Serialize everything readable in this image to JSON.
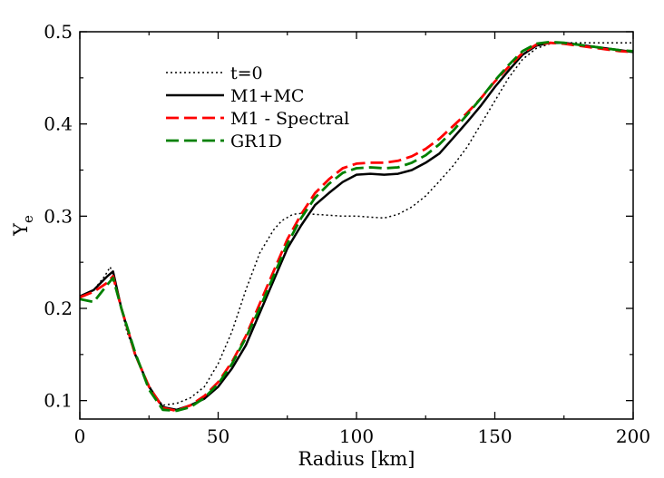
{
  "chart_data": {
    "type": "line",
    "title": "",
    "xlabel": "Radius [km]",
    "ylabel": "Y",
    "ylabel_subscript": "e",
    "xlim": [
      0,
      200
    ],
    "ylim": [
      0.08,
      0.5
    ],
    "xticks": [
      0,
      50,
      100,
      150,
      200
    ],
    "xtick_labels": [
      "0",
      "50",
      "100",
      "150",
      "200"
    ],
    "yticks": [
      0.1,
      0.2,
      0.3,
      0.4,
      0.5
    ],
    "ytick_labels": [
      "0.1",
      "0.2",
      "0.3",
      "0.4",
      "0.5"
    ],
    "grid": false,
    "legend_position": "top-left",
    "series": [
      {
        "name": "t=0",
        "color": "#000000",
        "style": "dotted",
        "x": [
          0,
          5,
          9,
          11,
          13,
          17,
          22,
          27,
          30,
          35,
          40,
          45,
          50,
          55,
          60,
          65,
          70,
          73,
          77,
          80,
          85,
          90,
          95,
          100,
          105,
          110,
          115,
          120,
          125,
          130,
          135,
          140,
          145,
          150,
          155,
          160,
          165,
          170,
          175,
          180,
          185,
          190,
          195,
          200
        ],
        "y": [
          0.21,
          0.22,
          0.235,
          0.245,
          0.225,
          0.175,
          0.135,
          0.105,
          0.095,
          0.097,
          0.103,
          0.115,
          0.14,
          0.175,
          0.22,
          0.26,
          0.285,
          0.295,
          0.302,
          0.303,
          0.302,
          0.301,
          0.3,
          0.3,
          0.299,
          0.298,
          0.302,
          0.31,
          0.322,
          0.338,
          0.355,
          0.375,
          0.4,
          0.425,
          0.45,
          0.47,
          0.482,
          0.487,
          0.488,
          0.488,
          0.488,
          0.488,
          0.488,
          0.488
        ]
      },
      {
        "name": "M1+MC",
        "color": "#000000",
        "style": "solid",
        "x": [
          0,
          5,
          10,
          12,
          15,
          20,
          25,
          30,
          35,
          40,
          45,
          50,
          55,
          60,
          65,
          70,
          75,
          80,
          85,
          90,
          95,
          100,
          105,
          110,
          115,
          120,
          125,
          130,
          135,
          140,
          145,
          150,
          155,
          160,
          165,
          170,
          175,
          180,
          185,
          190,
          195,
          200
        ],
        "y": [
          0.213,
          0.22,
          0.235,
          0.24,
          0.2,
          0.15,
          0.115,
          0.093,
          0.09,
          0.095,
          0.102,
          0.115,
          0.135,
          0.16,
          0.195,
          0.23,
          0.265,
          0.29,
          0.312,
          0.325,
          0.337,
          0.345,
          0.346,
          0.345,
          0.346,
          0.35,
          0.358,
          0.368,
          0.385,
          0.402,
          0.42,
          0.44,
          0.458,
          0.475,
          0.485,
          0.488,
          0.488,
          0.486,
          0.484,
          0.482,
          0.48,
          0.478
        ]
      },
      {
        "name": "M1 - Spectral",
        "color": "#ff0000",
        "style": "dashed",
        "x": [
          0,
          5,
          10,
          12,
          15,
          20,
          25,
          30,
          35,
          40,
          45,
          50,
          55,
          60,
          65,
          70,
          75,
          80,
          85,
          90,
          95,
          100,
          105,
          110,
          115,
          120,
          125,
          130,
          135,
          140,
          145,
          150,
          155,
          160,
          165,
          170,
          175,
          180,
          185,
          190,
          195,
          200
        ],
        "y": [
          0.212,
          0.218,
          0.228,
          0.235,
          0.2,
          0.15,
          0.115,
          0.092,
          0.089,
          0.095,
          0.105,
          0.12,
          0.142,
          0.17,
          0.205,
          0.24,
          0.275,
          0.302,
          0.325,
          0.34,
          0.352,
          0.357,
          0.358,
          0.358,
          0.36,
          0.365,
          0.373,
          0.384,
          0.398,
          0.412,
          0.428,
          0.446,
          0.462,
          0.477,
          0.486,
          0.488,
          0.487,
          0.485,
          0.483,
          0.481,
          0.479,
          0.478
        ]
      },
      {
        "name": "GR1D",
        "color": "#008000",
        "style": "dashed",
        "x": [
          0,
          5,
          10,
          12,
          15,
          20,
          25,
          30,
          35,
          40,
          45,
          50,
          55,
          60,
          65,
          70,
          75,
          80,
          85,
          90,
          95,
          100,
          105,
          110,
          115,
          120,
          125,
          130,
          135,
          140,
          145,
          150,
          155,
          160,
          165,
          170,
          175,
          180,
          185,
          190,
          195,
          200
        ],
        "y": [
          0.21,
          0.207,
          0.226,
          0.233,
          0.2,
          0.152,
          0.112,
          0.09,
          0.089,
          0.093,
          0.103,
          0.118,
          0.14,
          0.168,
          0.2,
          0.235,
          0.27,
          0.298,
          0.32,
          0.335,
          0.347,
          0.352,
          0.353,
          0.352,
          0.353,
          0.358,
          0.366,
          0.378,
          0.393,
          0.41,
          0.428,
          0.447,
          0.464,
          0.479,
          0.487,
          0.489,
          0.488,
          0.486,
          0.484,
          0.482,
          0.48,
          0.479
        ]
      }
    ]
  }
}
